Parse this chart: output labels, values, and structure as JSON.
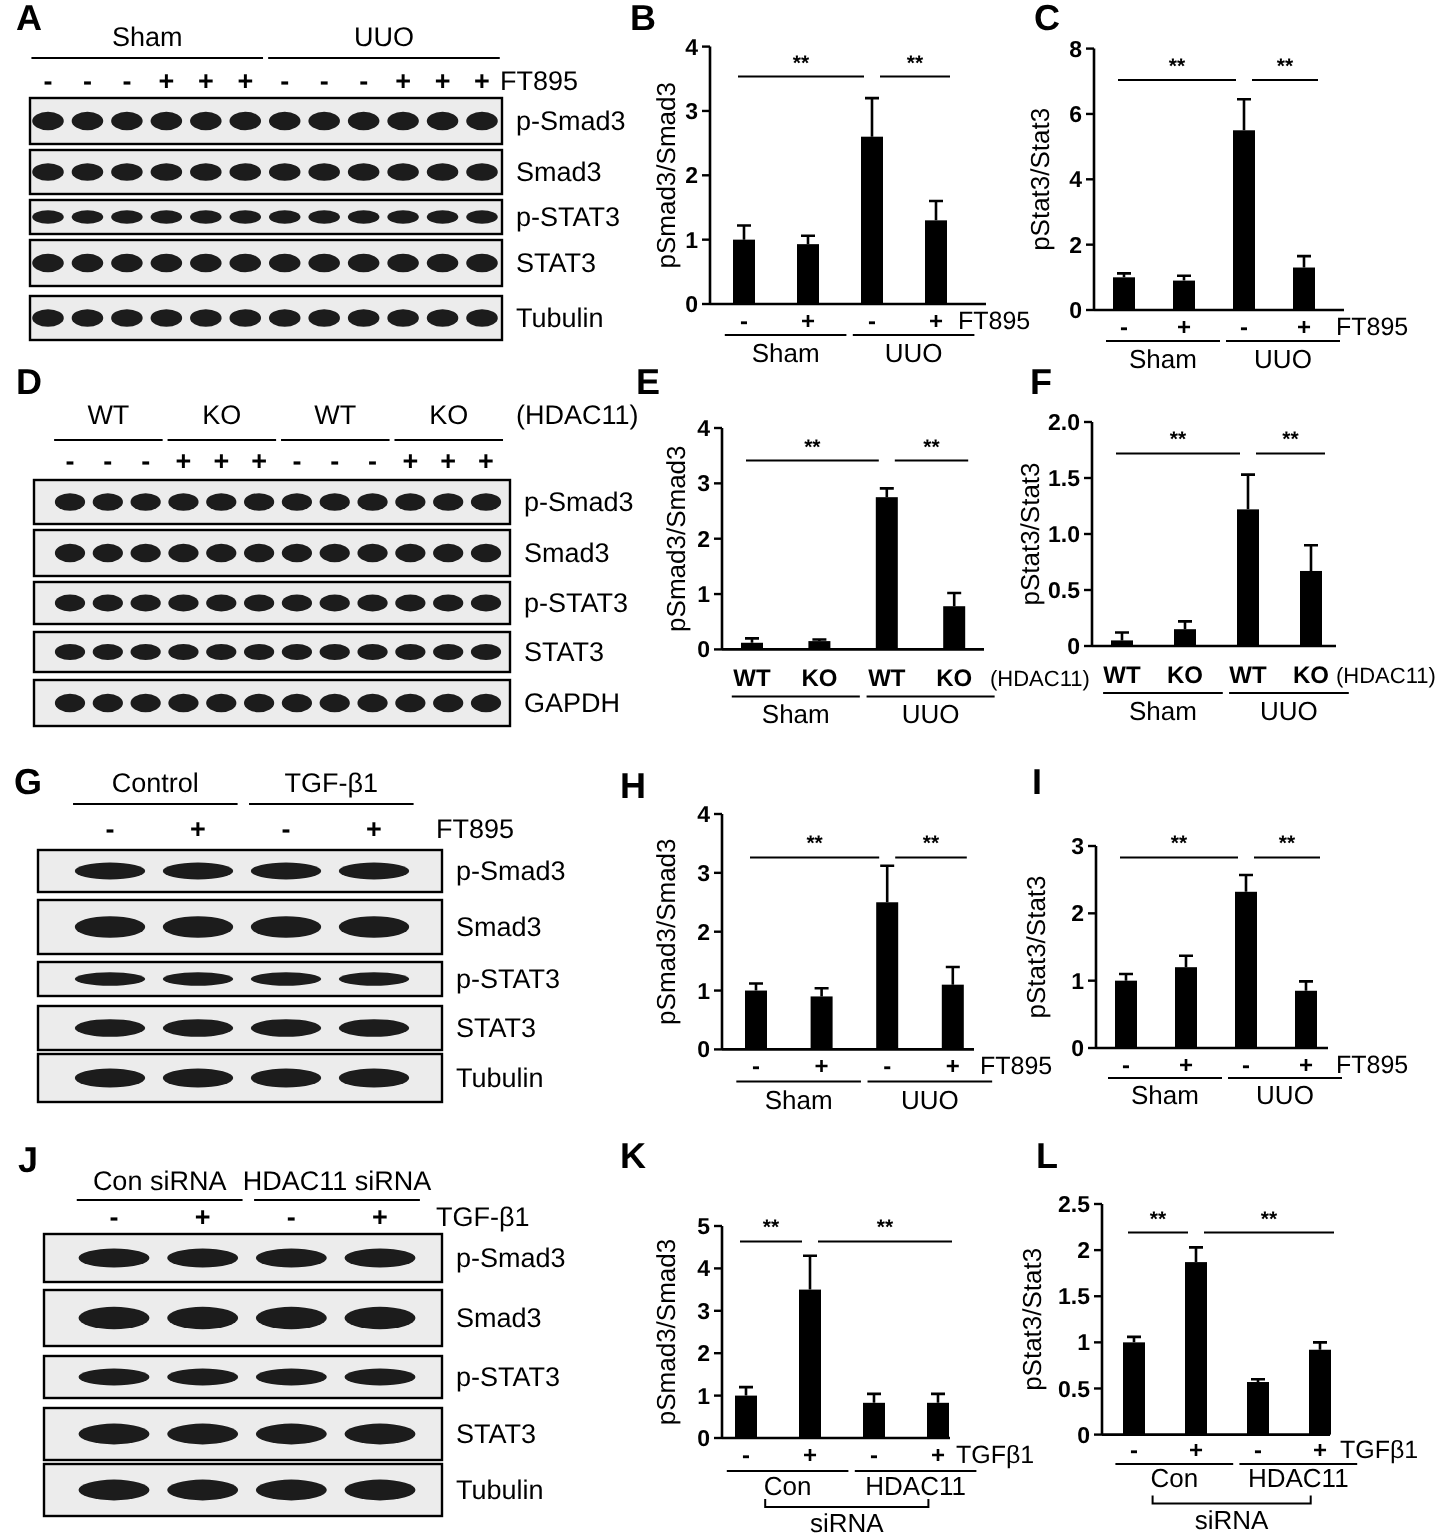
{
  "chart_data": [
    {
      "type": "other",
      "title": "A",
      "annotations": [
        "Sham",
        "UUO"
      ],
      "categories": [
        "-",
        "-",
        "-",
        "+",
        "+",
        "+",
        "-",
        "-",
        "-",
        "+",
        "+",
        "+"
      ],
      "xlabel": "FT895",
      "y_categories": [
        "p-Smad3",
        "Smad3",
        "p-STAT3",
        "STAT3",
        "Tubulin"
      ]
    },
    {
      "type": "bar",
      "title": "B",
      "ylabel": "pSmad3/Smad3",
      "xlabel": "FT895",
      "categories": [
        "-",
        "+",
        "-",
        "+"
      ],
      "values": [
        1,
        0.93,
        2.6,
        1.3
      ],
      "errors": [
        0.22,
        0.13,
        0.6,
        0.3
      ],
      "color": "#000000",
      "ylim": [
        0,
        4
      ],
      "yticks": [
        0,
        1,
        2,
        3,
        4
      ],
      "annotations": [
        "**",
        "**",
        "Sham",
        "UUO"
      ]
    },
    {
      "type": "bar",
      "title": "C",
      "ylabel": "pStat3/Stat3",
      "xlabel": "FT895",
      "categories": [
        "-",
        "+",
        "-",
        "+"
      ],
      "values": [
        1,
        0.9,
        5.5,
        1.3
      ],
      "errors": [
        0.12,
        0.15,
        0.95,
        0.35
      ],
      "color": "#000000",
      "ylim": [
        0,
        8
      ],
      "yticks": [
        0,
        2,
        4,
        6,
        8
      ],
      "annotations": [
        "**",
        "**",
        "Sham",
        "UUO"
      ]
    },
    {
      "type": "other",
      "title": "D",
      "annotations": [
        "WT",
        "KO",
        "WT",
        "KO"
      ],
      "categories": [
        "-",
        "-",
        "-",
        "+",
        "+",
        "+",
        "-",
        "-",
        "-",
        "+",
        "+",
        "+"
      ],
      "xlabel": "(HDAC11)",
      "y_categories": [
        "p-Smad3",
        "Smad3",
        "p-STAT3",
        "STAT3",
        "GAPDH"
      ]
    },
    {
      "type": "bar",
      "title": "E",
      "ylabel": "pSmad3/Smad3",
      "xlabel": "(HDAC11)",
      "categories": [
        "WT",
        "KO",
        "WT",
        "KO"
      ],
      "values": [
        0.12,
        0.15,
        2.75,
        0.78
      ],
      "errors": [
        0.08,
        0.03,
        0.16,
        0.24
      ],
      "color": "#000000",
      "ylim": [
        0,
        4
      ],
      "yticks": [
        0,
        1,
        2,
        3,
        4
      ],
      "annotations": [
        "**",
        "**",
        "Sham",
        "UUO"
      ]
    },
    {
      "type": "bar",
      "title": "F",
      "ylabel": "pStat3/Stat3",
      "xlabel": "(HDAC11)",
      "categories": [
        "WT",
        "KO",
        "WT",
        "KO"
      ],
      "values": [
        0.05,
        0.15,
        1.22,
        0.67
      ],
      "errors": [
        0.07,
        0.07,
        0.31,
        0.23
      ],
      "color": "#000000",
      "ylim": [
        0,
        2
      ],
      "yticks": [
        0,
        0.5,
        {
          "value": 1,
          "label": "1.0"
        },
        1.5,
        {
          "value": 2,
          "label": "2.0"
        }
      ],
      "annotations": [
        "**",
        "**",
        "Sham",
        "UUO"
      ]
    },
    {
      "type": "other",
      "title": "G",
      "annotations": [
        "Control",
        "TGF-β1"
      ],
      "categories": [
        "-",
        "+",
        "-",
        "+"
      ],
      "xlabel": "FT895",
      "y_categories": [
        "p-Smad3",
        "Smad3",
        "p-STAT3",
        "STAT3",
        "Tubulin"
      ]
    },
    {
      "type": "bar",
      "title": "H",
      "ylabel": "pSmad3/Smad3",
      "xlabel": "FT895",
      "categories": [
        "-",
        "+",
        "-",
        "+"
      ],
      "values": [
        1,
        0.9,
        2.5,
        1.1
      ],
      "errors": [
        0.12,
        0.14,
        0.62,
        0.3
      ],
      "color": "#000000",
      "ylim": [
        0,
        4
      ],
      "yticks": [
        0,
        1,
        2,
        3,
        4
      ],
      "annotations": [
        "**",
        "**",
        "Sham",
        "UUO"
      ]
    },
    {
      "type": "bar",
      "title": "I",
      "ylabel": "pStat3/Stat3",
      "xlabel": "FT895",
      "categories": [
        "-",
        "+",
        "-",
        "+"
      ],
      "values": [
        1,
        1.2,
        2.32,
        0.85
      ],
      "errors": [
        0.1,
        0.17,
        0.25,
        0.14
      ],
      "color": "#000000",
      "ylim": [
        0,
        3
      ],
      "yticks": [
        0,
        1,
        2,
        3
      ],
      "annotations": [
        "**",
        "**",
        "Sham",
        "UUO"
      ]
    },
    {
      "type": "other",
      "title": "J",
      "annotations": [
        "Con siRNA",
        "HDAC11 siRNA"
      ],
      "categories": [
        "-",
        "+",
        "-",
        "+"
      ],
      "xlabel": "TGF-β1",
      "y_categories": [
        "p-Smad3",
        "Smad3",
        "p-STAT3",
        "STAT3",
        "Tubulin"
      ]
    },
    {
      "type": "bar",
      "title": "K",
      "ylabel": "pSmad3/Smad3",
      "xlabel": "TGFβ1",
      "categories": [
        "-",
        "+",
        "-",
        "+"
      ],
      "values": [
        1,
        3.5,
        0.83,
        0.83
      ],
      "errors": [
        0.2,
        0.8,
        0.21,
        0.21
      ],
      "color": "#000000",
      "ylim": [
        0,
        5
      ],
      "yticks": [
        0,
        1,
        2,
        3,
        4,
        5
      ],
      "annotations": [
        "**",
        "**",
        "Con",
        "HDAC11",
        "siRNA"
      ]
    },
    {
      "type": "bar",
      "title": "L",
      "ylabel": "pStat3/Stat3",
      "xlabel": "TGFβ1",
      "categories": [
        "-",
        "+",
        "-",
        "+"
      ],
      "values": [
        1,
        1.87,
        0.57,
        0.92
      ],
      "errors": [
        0.06,
        0.16,
        0.03,
        0.08
      ],
      "color": "#000000",
      "ylim": [
        0,
        2.5
      ],
      "yticks": [
        0,
        0.5,
        1,
        1.5,
        2,
        2.5
      ],
      "annotations": [
        "**",
        "**",
        "Con",
        "HDAC11",
        "siRNA"
      ]
    }
  ]
}
